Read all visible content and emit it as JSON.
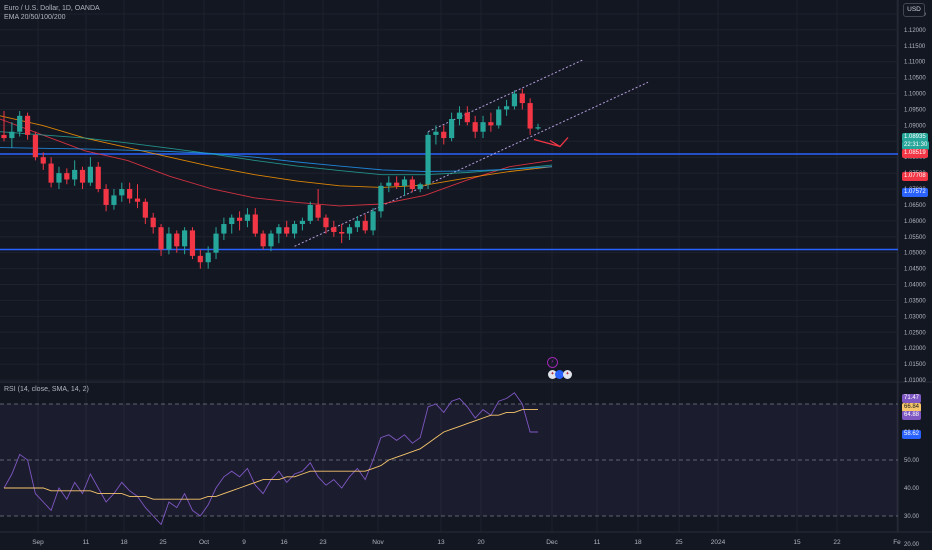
{
  "header": {
    "symbol_title": "Euro / U.S. Dollar, 1D, OANDA",
    "indicator_label": "EMA 20/50/100/200",
    "currency_button": "USD"
  },
  "rsi_panel": {
    "label": "RSI (14, close, SMA, 14, 2)",
    "axis_ticks": [
      "70.00",
      "60.00",
      "50.00",
      "40.00",
      "30.00",
      "20.00"
    ],
    "badges": [
      "71.47",
      "66.84",
      "64.88",
      "58.62"
    ],
    "colors": {
      "rsi_line": "#7e57c2",
      "rsi_ma": "#f7c66b",
      "band_fill": "#7e57c2"
    }
  },
  "price_axis": {
    "ticks": [
      "1.12500",
      "1.12000",
      "1.11500",
      "1.11000",
      "1.10500",
      "1.10000",
      "1.09500",
      "1.09000",
      "1.08500",
      "1.08000",
      "1.07500",
      "1.07000",
      "1.06500",
      "1.06000",
      "1.05500",
      "1.05000",
      "1.04500",
      "1.04000",
      "1.03500",
      "1.03000",
      "1.02500",
      "1.02000",
      "1.01500",
      "1.01000"
    ],
    "badges": [
      {
        "text": "1.08935",
        "color": "#26a69a"
      },
      {
        "text": "22:31:30",
        "color": "#26a69a"
      },
      {
        "text": "1.08519",
        "color": "#f23645"
      },
      {
        "text": "1.07708",
        "color": "#f23645"
      },
      {
        "text": "1.07572",
        "color": "#2962ff"
      }
    ]
  },
  "time_axis": {
    "labels": [
      "Sep",
      "11",
      "18",
      "25",
      "Oct",
      "9",
      "16",
      "23",
      "Nov",
      "13",
      "20",
      "Dec",
      "11",
      "18",
      "25",
      "2024",
      "15",
      "22",
      "Fe"
    ]
  },
  "chart_data": {
    "type": "candlestick",
    "title": "Euro / U.S. Dollar, 1D, OANDA",
    "xlabel": "",
    "ylabel": "",
    "ylim": [
      1.01,
      1.1275
    ],
    "candles": [
      {
        "o": 1.087,
        "h": 1.0945,
        "l": 1.085,
        "c": 1.086
      },
      {
        "o": 1.086,
        "h": 1.091,
        "l": 1.083,
        "c": 1.088
      },
      {
        "o": 1.088,
        "h": 1.0945,
        "l": 1.0865,
        "c": 1.093
      },
      {
        "o": 1.093,
        "h": 1.094,
        "l": 1.0855,
        "c": 1.087
      },
      {
        "o": 1.087,
        "h": 1.088,
        "l": 1.079,
        "c": 1.08
      },
      {
        "o": 1.08,
        "h": 1.0815,
        "l": 1.076,
        "c": 1.078
      },
      {
        "o": 1.078,
        "h": 1.08,
        "l": 1.0705,
        "c": 1.072
      },
      {
        "o": 1.072,
        "h": 1.077,
        "l": 1.07,
        "c": 1.075
      },
      {
        "o": 1.075,
        "h": 1.0765,
        "l": 1.0715,
        "c": 1.073
      },
      {
        "o": 1.073,
        "h": 1.079,
        "l": 1.071,
        "c": 1.076
      },
      {
        "o": 1.076,
        "h": 1.077,
        "l": 1.07,
        "c": 1.072
      },
      {
        "o": 1.072,
        "h": 1.08,
        "l": 1.071,
        "c": 1.077
      },
      {
        "o": 1.077,
        "h": 1.0785,
        "l": 1.069,
        "c": 1.07
      },
      {
        "o": 1.07,
        "h": 1.0715,
        "l": 1.063,
        "c": 1.065
      },
      {
        "o": 1.065,
        "h": 1.07,
        "l": 1.0635,
        "c": 1.068
      },
      {
        "o": 1.068,
        "h": 1.072,
        "l": 1.066,
        "c": 1.07
      },
      {
        "o": 1.07,
        "h": 1.072,
        "l": 1.0655,
        "c": 1.067
      },
      {
        "o": 1.067,
        "h": 1.0715,
        "l": 1.064,
        "c": 1.066
      },
      {
        "o": 1.066,
        "h": 1.067,
        "l": 1.059,
        "c": 1.061
      },
      {
        "o": 1.061,
        "h": 1.0625,
        "l": 1.056,
        "c": 1.058
      },
      {
        "o": 1.058,
        "h": 1.059,
        "l": 1.049,
        "c": 1.051
      },
      {
        "o": 1.051,
        "h": 1.058,
        "l": 1.0495,
        "c": 1.056
      },
      {
        "o": 1.056,
        "h": 1.057,
        "l": 1.05,
        "c": 1.052
      },
      {
        "o": 1.052,
        "h": 1.058,
        "l": 1.0495,
        "c": 1.057
      },
      {
        "o": 1.057,
        "h": 1.058,
        "l": 1.048,
        "c": 1.049
      },
      {
        "o": 1.049,
        "h": 1.051,
        "l": 1.045,
        "c": 1.047
      },
      {
        "o": 1.047,
        "h": 1.052,
        "l": 1.045,
        "c": 1.05
      },
      {
        "o": 1.05,
        "h": 1.058,
        "l": 1.048,
        "c": 1.056
      },
      {
        "o": 1.056,
        "h": 1.061,
        "l": 1.054,
        "c": 1.059
      },
      {
        "o": 1.059,
        "h": 1.062,
        "l": 1.056,
        "c": 1.061
      },
      {
        "o": 1.061,
        "h": 1.063,
        "l": 1.057,
        "c": 1.06
      },
      {
        "o": 1.06,
        "h": 1.064,
        "l": 1.058,
        "c": 1.062
      },
      {
        "o": 1.062,
        "h": 1.064,
        "l": 1.055,
        "c": 1.056
      },
      {
        "o": 1.056,
        "h": 1.057,
        "l": 1.051,
        "c": 1.052
      },
      {
        "o": 1.052,
        "h": 1.057,
        "l": 1.0505,
        "c": 1.056
      },
      {
        "o": 1.056,
        "h": 1.059,
        "l": 1.053,
        "c": 1.058
      },
      {
        "o": 1.058,
        "h": 1.06,
        "l": 1.055,
        "c": 1.056
      },
      {
        "o": 1.056,
        "h": 1.06,
        "l": 1.0545,
        "c": 1.059
      },
      {
        "o": 1.059,
        "h": 1.061,
        "l": 1.057,
        "c": 1.06
      },
      {
        "o": 1.06,
        "h": 1.066,
        "l": 1.059,
        "c": 1.065
      },
      {
        "o": 1.065,
        "h": 1.07,
        "l": 1.06,
        "c": 1.061
      },
      {
        "o": 1.061,
        "h": 1.062,
        "l": 1.056,
        "c": 1.058
      },
      {
        "o": 1.058,
        "h": 1.06,
        "l": 1.055,
        "c": 1.0565
      },
      {
        "o": 1.0565,
        "h": 1.059,
        "l": 1.053,
        "c": 1.056
      },
      {
        "o": 1.056,
        "h": 1.059,
        "l": 1.054,
        "c": 1.058
      },
      {
        "o": 1.058,
        "h": 1.0615,
        "l": 1.0565,
        "c": 1.06
      },
      {
        "o": 1.06,
        "h": 1.062,
        "l": 1.056,
        "c": 1.057
      },
      {
        "o": 1.057,
        "h": 1.064,
        "l": 1.0555,
        "c": 1.063
      },
      {
        "o": 1.063,
        "h": 1.072,
        "l": 1.061,
        "c": 1.071
      },
      {
        "o": 1.071,
        "h": 1.074,
        "l": 1.069,
        "c": 1.072
      },
      {
        "o": 1.072,
        "h": 1.074,
        "l": 1.07,
        "c": 1.071
      },
      {
        "o": 1.071,
        "h": 1.074,
        "l": 1.068,
        "c": 1.073
      },
      {
        "o": 1.073,
        "h": 1.074,
        "l": 1.069,
        "c": 1.07
      },
      {
        "o": 1.07,
        "h": 1.072,
        "l": 1.069,
        "c": 1.0715
      },
      {
        "o": 1.0715,
        "h": 1.088,
        "l": 1.07,
        "c": 1.087
      },
      {
        "o": 1.087,
        "h": 1.09,
        "l": 1.084,
        "c": 1.088
      },
      {
        "o": 1.088,
        "h": 1.09,
        "l": 1.084,
        "c": 1.086
      },
      {
        "o": 1.086,
        "h": 1.094,
        "l": 1.085,
        "c": 1.092
      },
      {
        "o": 1.092,
        "h": 1.096,
        "l": 1.09,
        "c": 1.094
      },
      {
        "o": 1.094,
        "h": 1.096,
        "l": 1.09,
        "c": 1.091
      },
      {
        "o": 1.091,
        "h": 1.093,
        "l": 1.086,
        "c": 1.088
      },
      {
        "o": 1.088,
        "h": 1.093,
        "l": 1.086,
        "c": 1.091
      },
      {
        "o": 1.091,
        "h": 1.094,
        "l": 1.088,
        "c": 1.09
      },
      {
        "o": 1.09,
        "h": 1.096,
        "l": 1.089,
        "c": 1.095
      },
      {
        "o": 1.095,
        "h": 1.098,
        "l": 1.093,
        "c": 1.096
      },
      {
        "o": 1.096,
        "h": 1.101,
        "l": 1.095,
        "c": 1.1
      },
      {
        "o": 1.1,
        "h": 1.1015,
        "l": 1.095,
        "c": 1.097
      },
      {
        "o": 1.097,
        "h": 1.0985,
        "l": 1.087,
        "c": 1.089
      },
      {
        "o": 1.089,
        "h": 1.0905,
        "l": 1.0885,
        "c": 1.0894
      }
    ],
    "horizontal_levels": [
      1.081,
      1.051
    ],
    "ema_lines": [
      {
        "name": "EMA 20",
        "color": "#f23645",
        "values": [
          1.092,
          1.087,
          1.082,
          1.079,
          1.074,
          1.07,
          1.0672,
          1.0658,
          1.0647,
          1.0653,
          1.068,
          1.0728,
          1.077,
          1.079
        ]
      },
      {
        "name": "EMA 50",
        "color": "#ff9800",
        "values": [
          1.093,
          1.09,
          1.086,
          1.083,
          1.08,
          1.077,
          1.0745,
          1.0725,
          1.071,
          1.0705,
          1.0712,
          1.0735,
          1.0755,
          1.077
        ]
      },
      {
        "name": "EMA 100",
        "color": "#26a69a",
        "values": [
          1.088,
          1.087,
          1.086,
          1.0845,
          1.0828,
          1.081,
          1.079,
          1.0772,
          1.0758,
          1.0745,
          1.0745,
          1.0752,
          1.0762,
          1.0775
        ]
      },
      {
        "name": "EMA 200",
        "color": "#2196f3",
        "values": [
          1.083,
          1.0828,
          1.0826,
          1.0822,
          1.0818,
          1.0812,
          1.08,
          1.0785,
          1.0772,
          1.076,
          1.0755,
          1.0757,
          1.0762,
          1.077
        ]
      }
    ],
    "rsi": {
      "ylim": [
        25,
        75
      ],
      "values": [
        40,
        45,
        52,
        50,
        38,
        35,
        32,
        40,
        36,
        42,
        38,
        45,
        40,
        35,
        38,
        42,
        39,
        37,
        33,
        30,
        27,
        35,
        33,
        38,
        32,
        30,
        34,
        40,
        44,
        46,
        44,
        47,
        41,
        38,
        43,
        46,
        42,
        45,
        46,
        49,
        44,
        41,
        43,
        40,
        44,
        47,
        43,
        50,
        58,
        59,
        57,
        59,
        56,
        58,
        69,
        70,
        67,
        71,
        72,
        69,
        65,
        68,
        66,
        71,
        72,
        74,
        70,
        60,
        60
      ],
      "ma": [
        40,
        40,
        40,
        40,
        40,
        40,
        39,
        39,
        39,
        39,
        39,
        39,
        38,
        38,
        38,
        38,
        37,
        37,
        37,
        36,
        36,
        36,
        36,
        36,
        36,
        36,
        37,
        37,
        38,
        39,
        40,
        41,
        42,
        43,
        43,
        43,
        44,
        44,
        45,
        46,
        46,
        46,
        46,
        46,
        46,
        46,
        46,
        47,
        48,
        50,
        51,
        52,
        53,
        54,
        56,
        58,
        60,
        61,
        62,
        63,
        64,
        65,
        66,
        66,
        67,
        67,
        68,
        68,
        68
      ]
    }
  }
}
